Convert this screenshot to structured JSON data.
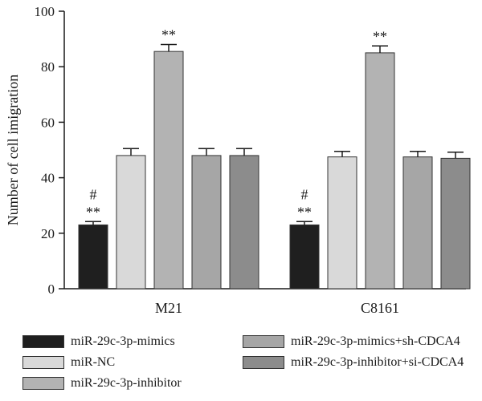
{
  "chart_data": {
    "type": "bar",
    "ylabel": "Number of cell imigration",
    "xlabel": "",
    "ylim": [
      0,
      100
    ],
    "yticks": [
      "0",
      "20",
      "40",
      "60",
      "80",
      "100"
    ],
    "categories": [
      "M21",
      "C8161"
    ],
    "series": [
      {
        "name": "miR-29c-3p-mimics",
        "color": "#1f1f1f",
        "values": [
          23,
          23
        ],
        "errors": [
          1.2,
          1.2
        ],
        "annotations": [
          "#\n**",
          "#\n**"
        ]
      },
      {
        "name": "miR-NC",
        "color": "#d9d9d9",
        "values": [
          48,
          47.5
        ],
        "errors": [
          2.5,
          2
        ],
        "annotations": [
          "",
          ""
        ]
      },
      {
        "name": "miR-29c-3p-inhibitor",
        "color": "#b3b3b3",
        "values": [
          85.5,
          85
        ],
        "errors": [
          2.5,
          2.5
        ],
        "annotations": [
          "**",
          "**"
        ]
      },
      {
        "name": "miR-29c-3p-mimics+sh-CDCA4",
        "color": "#a6a6a6",
        "values": [
          48,
          47.5
        ],
        "errors": [
          2.5,
          2
        ],
        "annotations": [
          "",
          ""
        ]
      },
      {
        "name": "miR-29c-3p-inhibitor+si-CDCA4",
        "color": "#8c8c8c",
        "values": [
          48,
          47
        ],
        "errors": [
          2.5,
          2.2
        ],
        "annotations": [
          "",
          ""
        ]
      }
    ],
    "grid": false,
    "legend_position": "bottom"
  }
}
